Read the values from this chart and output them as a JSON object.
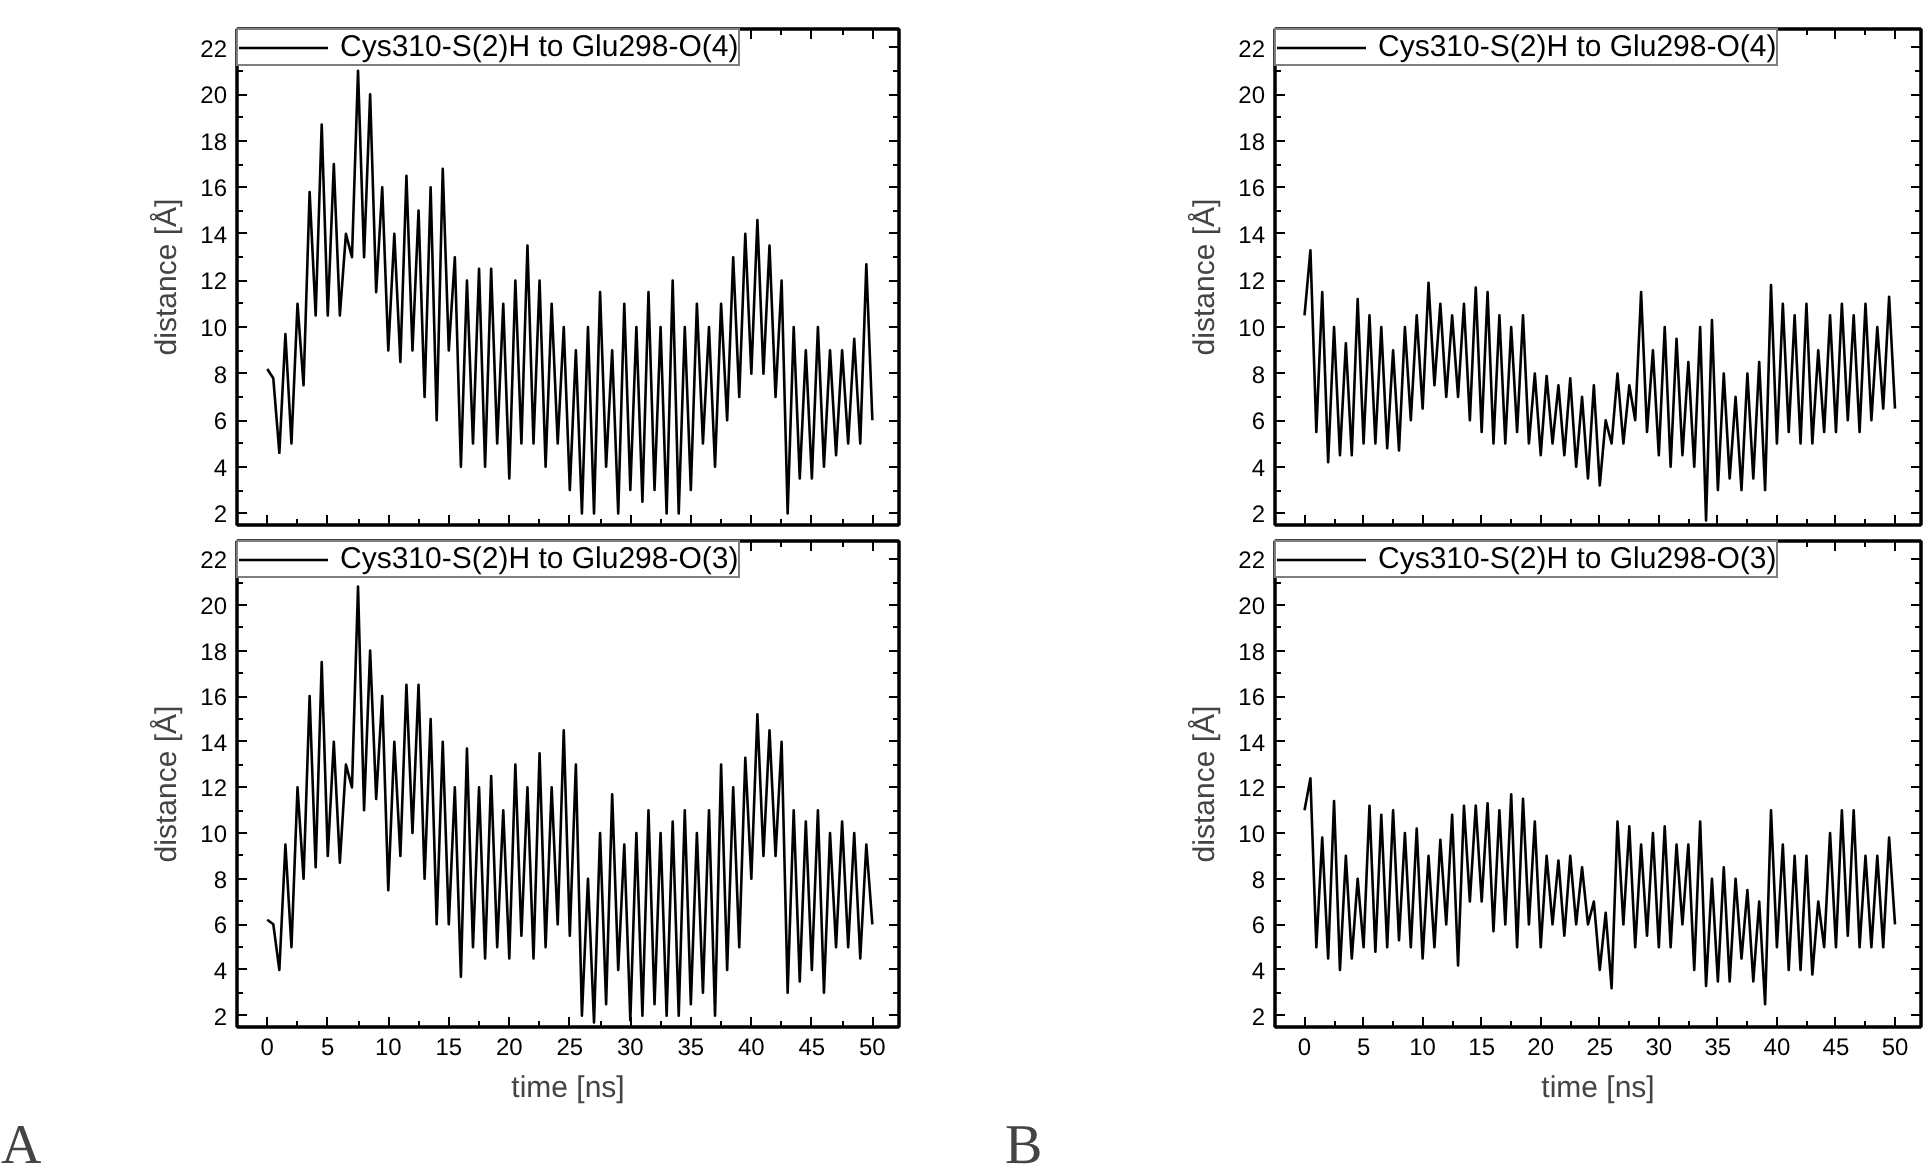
{
  "chart_data": [
    {
      "type": "line",
      "ylabel": "distance [Å]",
      "xlim": [
        -2.5,
        52.2
      ],
      "ylim": [
        1.5,
        22.8
      ],
      "xticks": [
        0,
        5,
        10,
        15,
        20,
        25,
        30,
        35,
        40,
        45,
        50
      ],
      "yticks": [
        2,
        4,
        6,
        8,
        10,
        12,
        14,
        16,
        18,
        20,
        22
      ],
      "tick_labels": "y",
      "grid": false,
      "legend": "top left",
      "marker": "none",
      "line_style": "solid",
      "x": [
        0,
        0.5,
        1,
        1.5,
        2,
        2.5,
        3,
        3.5,
        4,
        4.5,
        5,
        5.5,
        6,
        6.5,
        7,
        7.5,
        8,
        8.5,
        9,
        9.5,
        10,
        10.5,
        11,
        11.5,
        12,
        12.5,
        13,
        13.5,
        14,
        14.5,
        15,
        15.5,
        16,
        16.5,
        17,
        17.5,
        18,
        18.5,
        19,
        19.5,
        20,
        20.5,
        21,
        21.5,
        22,
        22.5,
        23,
        23.5,
        24,
        24.5,
        25,
        25.5,
        26,
        26.5,
        27,
        27.5,
        28,
        28.5,
        29,
        29.5,
        30,
        30.5,
        31,
        31.5,
        32,
        32.5,
        33,
        33.5,
        34,
        34.5,
        35,
        35.5,
        36,
        36.5,
        37,
        37.5,
        38,
        38.5,
        39,
        39.5,
        40,
        40.5,
        41,
        41.5,
        42,
        42.5,
        43,
        43.5,
        44,
        44.5,
        45,
        45.5,
        46,
        46.5,
        47,
        47.5,
        48,
        48.5,
        49,
        49.5,
        50
      ],
      "series": [
        {
          "name": "Cys310-S(2)H to Glu298-O(4)",
          "color": "#000000",
          "values": [
            8.2,
            7.8,
            4.6,
            9.7,
            5,
            11,
            7.5,
            15.8,
            10.5,
            18.7,
            10.5,
            17,
            10.5,
            14,
            13,
            21,
            13,
            20,
            11.5,
            16,
            9,
            14,
            8.5,
            16.5,
            9,
            15,
            7,
            16,
            6,
            16.8,
            9,
            13,
            4,
            12,
            5,
            12.5,
            4,
            12.5,
            5,
            11,
            3.5,
            12,
            5,
            13.5,
            5,
            12,
            4,
            11,
            5,
            10,
            3,
            9,
            2,
            10,
            2,
            11.5,
            4,
            9,
            2,
            11,
            3,
            10,
            2.5,
            11.5,
            3,
            10,
            2,
            12,
            2,
            10,
            3,
            11,
            5,
            10,
            4,
            11,
            6,
            13,
            7,
            14,
            8,
            14.6,
            8,
            13.5,
            7,
            12,
            2,
            10,
            3.5,
            9,
            3.5,
            10,
            4,
            9,
            4.5,
            9,
            5,
            9.5,
            5,
            12.7,
            6
          ]
        }
      ]
    },
    {
      "type": "line",
      "ylabel": "distance [Å]",
      "xlim": [
        -2.5,
        52.2
      ],
      "ylim": [
        1.5,
        22.8
      ],
      "xticks": [
        0,
        5,
        10,
        15,
        20,
        25,
        30,
        35,
        40,
        45,
        50
      ],
      "yticks": [
        2,
        4,
        6,
        8,
        10,
        12,
        14,
        16,
        18,
        20,
        22
      ],
      "tick_labels": "y",
      "grid": false,
      "legend": "top left",
      "marker": "none",
      "line_style": "solid",
      "x": [
        0,
        0.5,
        1,
        1.5,
        2,
        2.5,
        3,
        3.5,
        4,
        4.5,
        5,
        5.5,
        6,
        6.5,
        7,
        7.5,
        8,
        8.5,
        9,
        9.5,
        10,
        10.5,
        11,
        11.5,
        12,
        12.5,
        13,
        13.5,
        14,
        14.5,
        15,
        15.5,
        16,
        16.5,
        17,
        17.5,
        18,
        18.5,
        19,
        19.5,
        20,
        20.5,
        21,
        21.5,
        22,
        22.5,
        23,
        23.5,
        24,
        24.5,
        25,
        25.5,
        26,
        26.5,
        27,
        27.5,
        28,
        28.5,
        29,
        29.5,
        30,
        30.5,
        31,
        31.5,
        32,
        32.5,
        33,
        33.5,
        34,
        34.5,
        35,
        35.5,
        36,
        36.5,
        37,
        37.5,
        38,
        38.5,
        39,
        39.5,
        40,
        40.5,
        41,
        41.5,
        42,
        42.5,
        43,
        43.5,
        44,
        44.5,
        45,
        45.5,
        46,
        46.5,
        47,
        47.5,
        48,
        48.5,
        49,
        49.5,
        50
      ],
      "series": [
        {
          "name": "Cys310-S(2)H to Glu298-O(4)",
          "color": "#000000",
          "values": [
            10.5,
            13.3,
            5.5,
            11.5,
            4.2,
            10,
            4.5,
            9.3,
            4.5,
            11.2,
            5,
            10.5,
            5,
            10,
            4.8,
            9,
            4.7,
            10,
            6,
            10.5,
            6.5,
            11.9,
            7.5,
            11,
            7,
            10.5,
            7,
            11,
            6,
            11.7,
            5.5,
            11.5,
            5,
            10.5,
            5,
            10,
            5.5,
            10.5,
            5,
            8,
            4.5,
            7.9,
            5,
            7.5,
            4.5,
            7.8,
            4,
            7,
            3.5,
            7.5,
            3.2,
            6,
            5,
            8,
            5,
            7.5,
            6,
            11.5,
            5.5,
            9,
            4.5,
            10,
            4,
            9.5,
            4.5,
            8.5,
            4,
            10,
            1.7,
            10.3,
            3,
            8,
            3.5,
            7,
            3,
            8,
            3.5,
            8.5,
            3,
            11.8,
            5,
            11,
            5.5,
            10.5,
            5,
            11,
            5,
            9,
            5.5,
            10.5,
            5.5,
            11,
            6,
            10.5,
            5.5,
            11,
            6,
            10,
            6.5,
            11.3,
            6.5
          ]
        }
      ]
    },
    {
      "type": "line",
      "xlabel": "time [ns]",
      "ylabel": "distance [Å]",
      "annotations": [
        "A"
      ],
      "xlim": [
        -2.5,
        52.2
      ],
      "ylim": [
        1.5,
        22.8
      ],
      "xticks": [
        0,
        5,
        10,
        15,
        20,
        25,
        30,
        35,
        40,
        45,
        50
      ],
      "yticks": [
        2,
        4,
        6,
        8,
        10,
        12,
        14,
        16,
        18,
        20,
        22
      ],
      "grid": false,
      "legend": "top left",
      "marker": "none",
      "line_style": "solid",
      "x": [
        0,
        0.5,
        1,
        1.5,
        2,
        2.5,
        3,
        3.5,
        4,
        4.5,
        5,
        5.5,
        6,
        6.5,
        7,
        7.5,
        8,
        8.5,
        9,
        9.5,
        10,
        10.5,
        11,
        11.5,
        12,
        12.5,
        13,
        13.5,
        14,
        14.5,
        15,
        15.5,
        16,
        16.5,
        17,
        17.5,
        18,
        18.5,
        19,
        19.5,
        20,
        20.5,
        21,
        21.5,
        22,
        22.5,
        23,
        23.5,
        24,
        24.5,
        25,
        25.5,
        26,
        26.5,
        27,
        27.5,
        28,
        28.5,
        29,
        29.5,
        30,
        30.5,
        31,
        31.5,
        32,
        32.5,
        33,
        33.5,
        34,
        34.5,
        35,
        35.5,
        36,
        36.5,
        37,
        37.5,
        38,
        38.5,
        39,
        39.5,
        40,
        40.5,
        41,
        41.5,
        42,
        42.5,
        43,
        43.5,
        44,
        44.5,
        45,
        45.5,
        46,
        46.5,
        47,
        47.5,
        48,
        48.5,
        49,
        49.5,
        50
      ],
      "series": [
        {
          "name": "Cys310-S(2)H to Glu298-O(3)",
          "color": "#000000",
          "values": [
            6.2,
            6,
            4,
            9.5,
            5,
            12,
            8,
            16,
            8.5,
            17.5,
            9,
            14,
            8.7,
            13,
            12,
            20.8,
            11,
            18,
            11.5,
            16,
            7.5,
            14,
            9,
            16.5,
            10,
            16.5,
            8,
            15,
            6,
            14,
            6,
            12,
            3.7,
            13.7,
            5,
            12,
            4.5,
            12.5,
            5,
            11,
            4.5,
            13,
            5.5,
            12,
            4.5,
            13.5,
            5,
            12,
            6,
            14.5,
            5.5,
            13,
            2,
            8,
            1.7,
            10,
            2.5,
            11.7,
            4,
            9.5,
            1.8,
            10,
            2,
            11,
            2.5,
            10,
            2,
            10.5,
            2,
            11,
            2.5,
            10,
            3,
            11,
            2,
            13,
            4,
            12,
            5,
            13.3,
            8,
            15.2,
            9,
            14.5,
            9,
            14,
            3,
            11,
            3.5,
            10.5,
            4,
            11,
            3,
            10,
            5,
            10.5,
            5,
            10,
            4.5,
            9.5,
            6
          ]
        }
      ]
    },
    {
      "type": "line",
      "xlabel": "time [ns]",
      "ylabel": "distance [Å]",
      "annotations": [
        "B"
      ],
      "xlim": [
        -2.5,
        52.2
      ],
      "ylim": [
        1.5,
        22.8
      ],
      "xticks": [
        0,
        5,
        10,
        15,
        20,
        25,
        30,
        35,
        40,
        45,
        50
      ],
      "yticks": [
        2,
        4,
        6,
        8,
        10,
        12,
        14,
        16,
        18,
        20,
        22
      ],
      "grid": false,
      "legend": "top left",
      "marker": "none",
      "line_style": "solid",
      "x": [
        0,
        0.5,
        1,
        1.5,
        2,
        2.5,
        3,
        3.5,
        4,
        4.5,
        5,
        5.5,
        6,
        6.5,
        7,
        7.5,
        8,
        8.5,
        9,
        9.5,
        10,
        10.5,
        11,
        11.5,
        12,
        12.5,
        13,
        13.5,
        14,
        14.5,
        15,
        15.5,
        16,
        16.5,
        17,
        17.5,
        18,
        18.5,
        19,
        19.5,
        20,
        20.5,
        21,
        21.5,
        22,
        22.5,
        23,
        23.5,
        24,
        24.5,
        25,
        25.5,
        26,
        26.5,
        27,
        27.5,
        28,
        28.5,
        29,
        29.5,
        30,
        30.5,
        31,
        31.5,
        32,
        32.5,
        33,
        33.5,
        34,
        34.5,
        35,
        35.5,
        36,
        36.5,
        37,
        37.5,
        38,
        38.5,
        39,
        39.5,
        40,
        40.5,
        41,
        41.5,
        42,
        42.5,
        43,
        43.5,
        44,
        44.5,
        45,
        45.5,
        46,
        46.5,
        47,
        47.5,
        48,
        48.5,
        49,
        49.5,
        50
      ],
      "series": [
        {
          "name": "Cys310-S(2)H to Glu298-O(3)",
          "color": "#000000",
          "values": [
            11,
            12.4,
            5,
            9.8,
            4.5,
            11.4,
            4,
            9,
            4.5,
            8,
            5,
            11.2,
            4.8,
            10.8,
            5,
            11,
            5.3,
            10,
            5,
            10.2,
            4.5,
            9,
            5,
            9.7,
            6,
            10.8,
            4.2,
            11.2,
            7,
            11.2,
            7,
            11.3,
            5.7,
            11,
            6,
            11.7,
            5,
            11.5,
            6,
            10.5,
            5,
            9,
            6,
            8.8,
            5.5,
            9,
            6,
            8.5,
            6,
            7,
            4,
            6.5,
            3.2,
            10.5,
            6,
            10.3,
            5,
            9.5,
            5.5,
            10,
            5,
            10.3,
            5,
            9.5,
            6,
            9.5,
            4,
            10.5,
            3.3,
            8,
            3.5,
            8.5,
            3.5,
            8,
            4.5,
            7.5,
            3.5,
            7,
            2.5,
            11,
            5,
            9.5,
            4,
            9,
            4,
            9,
            3.8,
            7,
            5,
            10,
            5,
            11,
            5.5,
            11,
            5,
            9,
            5,
            9,
            5,
            9.8,
            6
          ]
        }
      ]
    }
  ]
}
